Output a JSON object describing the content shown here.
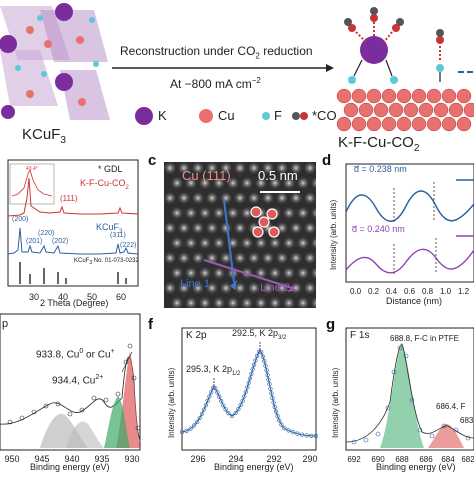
{
  "top": {
    "kcuf3_label": "KCuF",
    "kcuf3_sub": "3",
    "arrow_text_1": "Reconstruction under CO",
    "arrow_text_1_sub": "2",
    "arrow_text_1_tail": " reduction",
    "arrow_text_2": "At −800 mA cm",
    "arrow_text_2_sup": "−2",
    "legend": [
      {
        "symbol": "K",
        "label": "K",
        "color": "#7b2d9e"
      },
      {
        "symbol": "Cu",
        "label": "Cu",
        "color": "#e8706e"
      },
      {
        "symbol": "F",
        "label": "F",
        "color": "#5cc9d9"
      },
      {
        "symbol": "CO",
        "label": "*CO",
        "color": "#cc3333"
      }
    ],
    "product_label": "K-F-Cu-CO",
    "product_sub": "2"
  },
  "panel_b": {
    "letter": "",
    "legend_gdl": "* GDL",
    "inset_title": "43.4°",
    "inset_ticks": [
      "40",
      "42",
      "44",
      "46",
      "48"
    ],
    "trace_top_label": "K-F-Cu-CO",
    "trace_top_sub": "2",
    "trace_mid_label": "KCuF",
    "trace_mid_sub": "3",
    "peak_111_top": "(111)",
    "peak_labels": [
      "(200)",
      "(201)",
      "(220)",
      "(202)",
      "(311)",
      "(222)"
    ],
    "ref_label": "KCuF",
    "ref_label_tail": "3",
    "ref_label_tail2": " No. 01-073-0232",
    "x_ticks": [
      "30",
      "40",
      "50",
      "60"
    ],
    "xlabel": "2 Theta (Degree)"
  },
  "panel_c": {
    "letter": "c",
    "title": "Cu (111)",
    "scale": "0.5 nm",
    "line1": "Line 1",
    "line2": "Line 2"
  },
  "panel_d": {
    "letter": "d",
    "d1": "d̅ = 0.238 nm",
    "d2": "d̅ = 0.240 nm",
    "ylabel": "Intensity (arb. units)",
    "xlabel": "Distance (nm)",
    "x_ticks": [
      "0.0",
      "0.2",
      "0.4",
      "0.6",
      "0.8",
      "1.0",
      "1.2"
    ]
  },
  "panel_e": {
    "letter": "",
    "title": "p",
    "ann_main": "933.8, Cu",
    "ann_main_sup1": "0",
    "ann_main_mid": " or Cu",
    "ann_main_sup2": "+",
    "ann_sec": "934.4, Cu",
    "ann_sec_sup": "2+",
    "x_ticks": [
      "950",
      "945",
      "940",
      "935",
      "930"
    ],
    "xlabel": "Binding energy (eV)"
  },
  "panel_f": {
    "letter": "f",
    "title": "K 2p",
    "ann1": "292.5, K 2p",
    "ann1_sub": "3/2",
    "ann2": "295.3, K 2p",
    "ann2_sub": "1/2",
    "ylabel": "Intensity (arb. units)",
    "x_ticks": [
      "296",
      "294",
      "292",
      "290"
    ],
    "xlabel": "Binding energy (eV)"
  },
  "panel_g": {
    "letter": "g",
    "title": "F 1s",
    "ann1": "688.8, F-C in PTFE",
    "ann2": "686.4, F",
    "ann3": "683",
    "ylabel": "Intensity (arb. units)",
    "x_ticks": [
      "692",
      "690",
      "688",
      "686",
      "684",
      "682"
    ],
    "xlabel": "Binding energy (eV)"
  },
  "colors": {
    "k": "#7b2d9e",
    "cu": "#e8706e",
    "f": "#5cc9d9",
    "navy_trace": "#2b5fa0",
    "purple_trace": "#8e44ad",
    "xps_fit": "#e05a5a"
  }
}
